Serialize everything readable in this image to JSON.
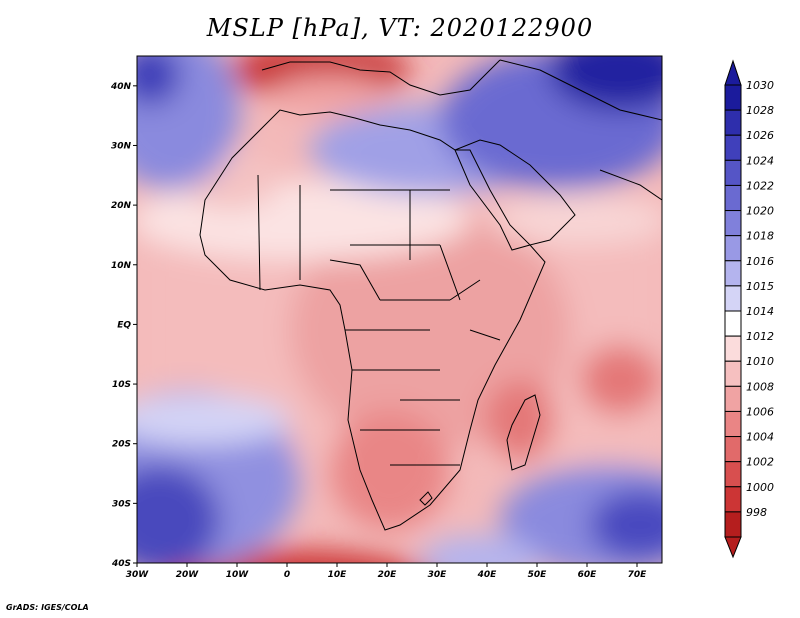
{
  "title": "MSLP [hPa], VT: 2020122900",
  "credit": "GrADS: IGES/COLA",
  "map": {
    "lon_range": [
      -30,
      75
    ],
    "lat_range": [
      -40,
      45
    ],
    "lon_ticks": [
      "30W",
      "20W",
      "10W",
      "0",
      "10E",
      "20E",
      "30E",
      "40E",
      "50E",
      "60E",
      "70E"
    ],
    "lat_ticks": [
      "40N",
      "30N",
      "20N",
      "10N",
      "EQ",
      "10S",
      "20S",
      "30S",
      "40S"
    ]
  },
  "colorbar": {
    "levels": [
      "1030",
      "1028",
      "1026",
      "1024",
      "1022",
      "1020",
      "1018",
      "1016",
      "1015",
      "1014",
      "1012",
      "1010",
      "1008",
      "1006",
      "1004",
      "1002",
      "1000",
      "998"
    ],
    "colors": [
      "#1b1b9c",
      "#2e2eac",
      "#4040bb",
      "#5555c6",
      "#6a6ad1",
      "#8080db",
      "#9999e5",
      "#b4b4ee",
      "#d4d4f6",
      "#ffffff",
      "#fbdcdc",
      "#f6c0c0",
      "#f0a3a3",
      "#ea8585",
      "#e16a6a",
      "#d84f4f",
      "#cc3535",
      "#b51e1e"
    ]
  }
}
